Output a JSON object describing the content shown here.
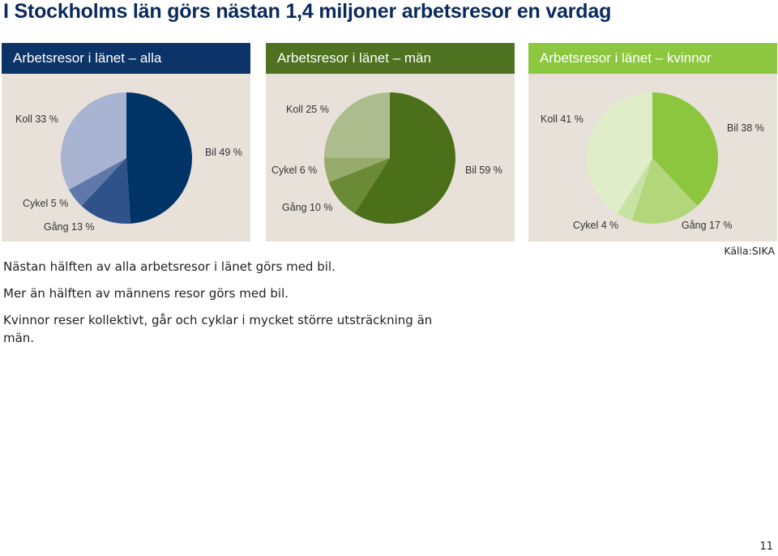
{
  "title": "I Stockholms län görs nästan 1,4 miljoner arbetsresor en vardag",
  "chart_data": [
    {
      "type": "pie",
      "title": "Arbetsresor i länet – alla",
      "header_color": "#0d3468",
      "slices": [
        {
          "label": "Bil 49 %",
          "category": "Bil",
          "value": 49,
          "color": "#003366"
        },
        {
          "label": "Gång 13 %",
          "category": "Gång",
          "value": 13,
          "color": "#2e5289"
        },
        {
          "label": "Cykel 5 %",
          "category": "Cykel",
          "value": 5,
          "color": "#5f78aa"
        },
        {
          "label": "Koll 33 %",
          "category": "Koll",
          "value": 33,
          "color": "#a7b3d1"
        }
      ]
    },
    {
      "type": "pie",
      "title": "Arbetsresor i länet – män",
      "header_color": "#4e721f",
      "slices": [
        {
          "label": "Bil 59 %",
          "category": "Bil",
          "value": 59,
          "color": "#4b7019"
        },
        {
          "label": "Gång 10 %",
          "category": "Gång",
          "value": 10,
          "color": "#6a8a35"
        },
        {
          "label": "Cykel 6 %",
          "category": "Cykel",
          "value": 6,
          "color": "#96ab6c"
        },
        {
          "label": "Koll 25 %",
          "category": "Koll",
          "value": 25,
          "color": "#adbc8c"
        }
      ]
    },
    {
      "type": "pie",
      "title": "Arbetsresor i länet – kvinnor",
      "header_color": "#8dc63f",
      "slices": [
        {
          "label": "Bil 38 %",
          "category": "Bil",
          "value": 38,
          "color": "#8cc63f"
        },
        {
          "label": "Gång 17 %",
          "category": "Gång",
          "value": 17,
          "color": "#b3d67a"
        },
        {
          "label": "Cykel 4 %",
          "category": "Cykel",
          "value": 4,
          "color": "#c8e2a1"
        },
        {
          "label": "Koll 41 %",
          "category": "Koll",
          "value": 41,
          "color": "#e0edc9"
        }
      ]
    }
  ],
  "text": {
    "line1": "Nästan hälften av alla arbetsresor i länet görs med bil.",
    "line2": "Mer än hälften av männens resor görs med bil.",
    "line3": "Kvinnor reser kollektivt, går och cyklar i mycket större utsträckning än män."
  },
  "source": "Källa:SIKA",
  "page_number": "11"
}
